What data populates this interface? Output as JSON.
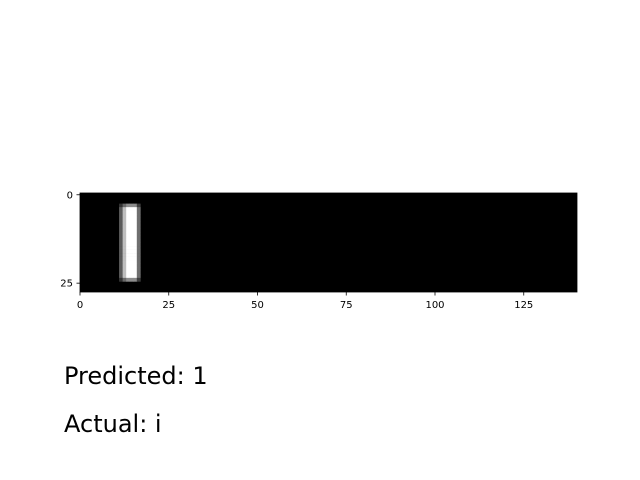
{
  "chart_data": {
    "type": "heatmap",
    "colormap": "gray",
    "image_shape": [
      28,
      140
    ],
    "stroke": {
      "description_values": "image columns 11-16, rows 3-24 bright (white) on black background",
      "col_start": 11,
      "col_end": 16,
      "row_start": 3,
      "row_end": 24
    },
    "xlim": [
      0,
      140
    ],
    "ylim": [
      28,
      0
    ],
    "x_ticks": [
      0,
      25,
      50,
      75,
      100,
      125
    ],
    "x_tick_labels": [
      "0",
      "25",
      "50",
      "75",
      "100",
      "125"
    ],
    "y_ticks": [
      0,
      25
    ],
    "y_tick_labels": [
      "0",
      "25"
    ],
    "grid": false
  },
  "captions": {
    "predicted": "Predicted: 1",
    "actual": "Actual: i"
  },
  "colors": {
    "background": "#000000",
    "stroke": "#ffffff",
    "text": "#000000"
  }
}
